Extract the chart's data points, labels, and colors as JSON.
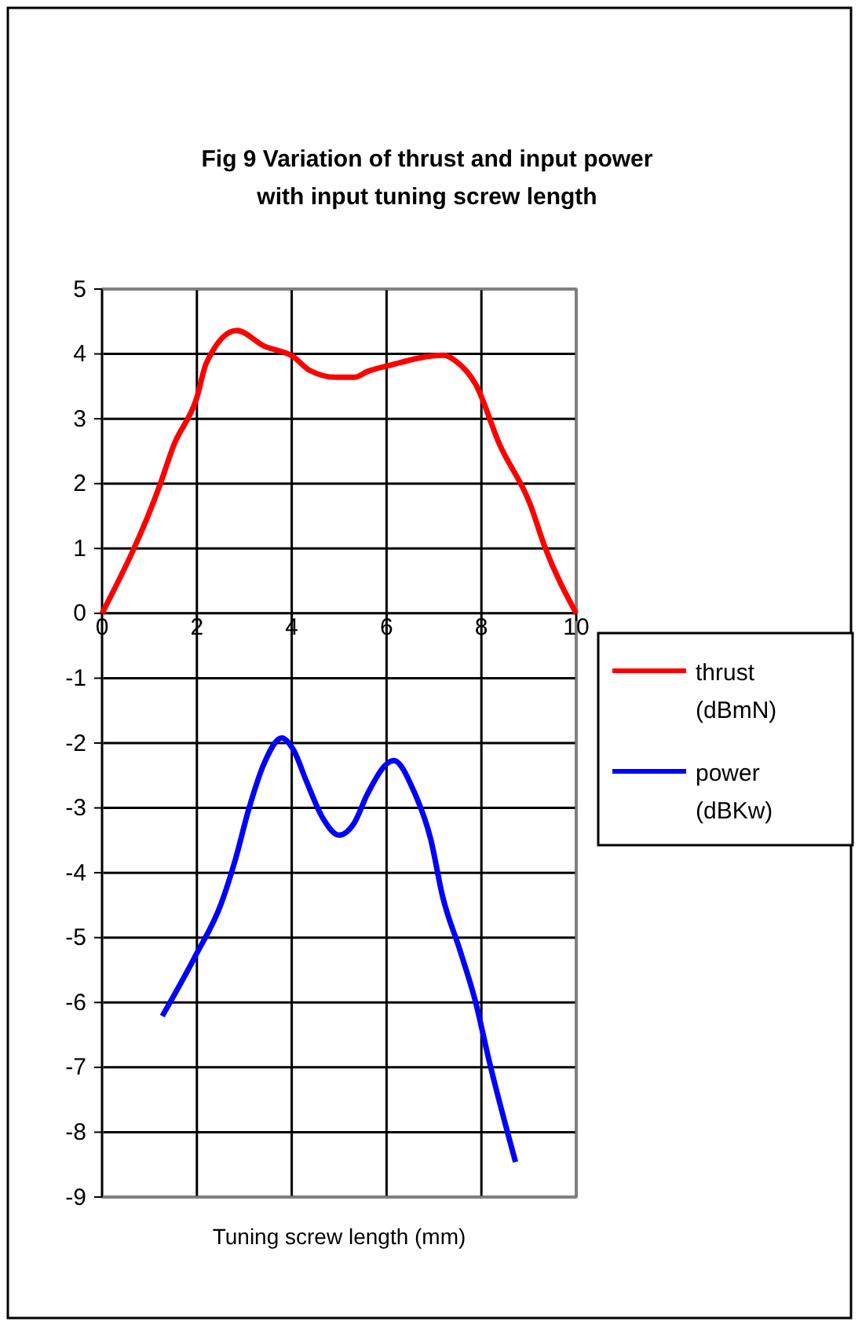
{
  "chart_data": {
    "type": "line",
    "title": "Fig 9  Variation of thrust and input power with input tuning screw length",
    "xlabel": "Tuning screw  length (mm)",
    "series": [
      {
        "name": "thrust (dBmN)",
        "color": "#ff0000",
        "x": [
          0,
          1.23,
          1.5,
          2.0,
          2.2,
          2.84,
          3.42,
          4.03,
          4.37,
          4.93,
          5.32,
          5.6,
          6.04,
          7.21,
          7.44,
          7.88,
          8.38,
          9.03,
          9.33,
          10
        ],
        "values": [
          0,
          2.0,
          2.57,
          3.33,
          3.86,
          4.36,
          4.12,
          3.96,
          3.75,
          3.64,
          3.64,
          3.73,
          3.82,
          3.98,
          3.9,
          3.53,
          2.61,
          1.68,
          1.04,
          0
        ]
      },
      {
        "name": "power (dBKw)",
        "color": "#0000ff",
        "x": [
          1.27,
          1.97,
          2.51,
          2.81,
          3.09,
          3.42,
          3.79,
          4.04,
          4.31,
          4.65,
          5.0,
          5.32,
          5.6,
          6.15,
          6.58,
          6.93,
          7.18,
          7.55,
          7.88,
          8.16,
          8.72
        ],
        "values": [
          -6.21,
          -5.28,
          -4.48,
          -3.8,
          -3.03,
          -2.31,
          -1.92,
          -2.11,
          -2.59,
          -3.15,
          -3.42,
          -3.23,
          -2.78,
          -2.27,
          -2.75,
          -3.48,
          -4.36,
          -5.2,
          -6.0,
          -6.89,
          -8.46
        ]
      }
    ],
    "xlim": [
      0,
      10
    ],
    "xticks": [
      0,
      2,
      4,
      6,
      8,
      10
    ],
    "ylim": [
      -9,
      5
    ],
    "yticks": [
      -9,
      -8,
      -7,
      -6,
      -5,
      -4,
      -3,
      -2,
      -1,
      0,
      1,
      2,
      3,
      4,
      5
    ],
    "grid": true,
    "legend": "right",
    "line_style": "solid",
    "marker": "none"
  }
}
